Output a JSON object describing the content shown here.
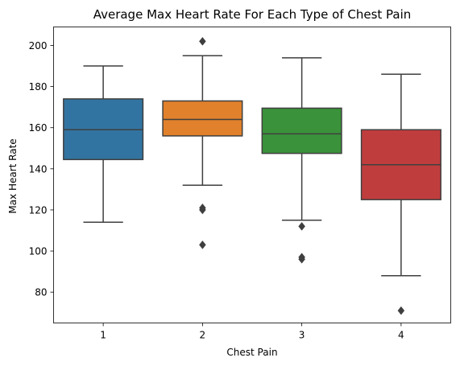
{
  "chart_data": {
    "type": "box",
    "title": "Average Max Heart Rate For Each Type of Chest Pain",
    "xlabel": "Chest Pain",
    "ylabel": "Max Heart Rate",
    "ylim": [
      65,
      209
    ],
    "yticks": [
      80,
      100,
      120,
      140,
      160,
      180,
      200
    ],
    "grid": false,
    "categories": [
      "1",
      "2",
      "3",
      "4"
    ],
    "boxes": [
      {
        "category": "1",
        "color": "#3274a1",
        "whisker_low": 114,
        "q1": 144.5,
        "median": 159,
        "q3": 174,
        "whisker_high": 190,
        "outliers": []
      },
      {
        "category": "2",
        "color": "#e1812c",
        "whisker_low": 132,
        "q1": 156,
        "median": 164,
        "q3": 173,
        "whisker_high": 195,
        "outliers": [
          202,
          121,
          120,
          103
        ]
      },
      {
        "category": "3",
        "color": "#3a923a",
        "whisker_low": 115,
        "q1": 147.5,
        "median": 157,
        "q3": 169.5,
        "whisker_high": 194,
        "outliers": [
          112,
          97,
          96
        ]
      },
      {
        "category": "4",
        "color": "#c03d3e",
        "whisker_low": 88,
        "q1": 125,
        "median": 142,
        "q3": 159,
        "whisker_high": 186,
        "outliers": [
          71
        ]
      }
    ]
  }
}
